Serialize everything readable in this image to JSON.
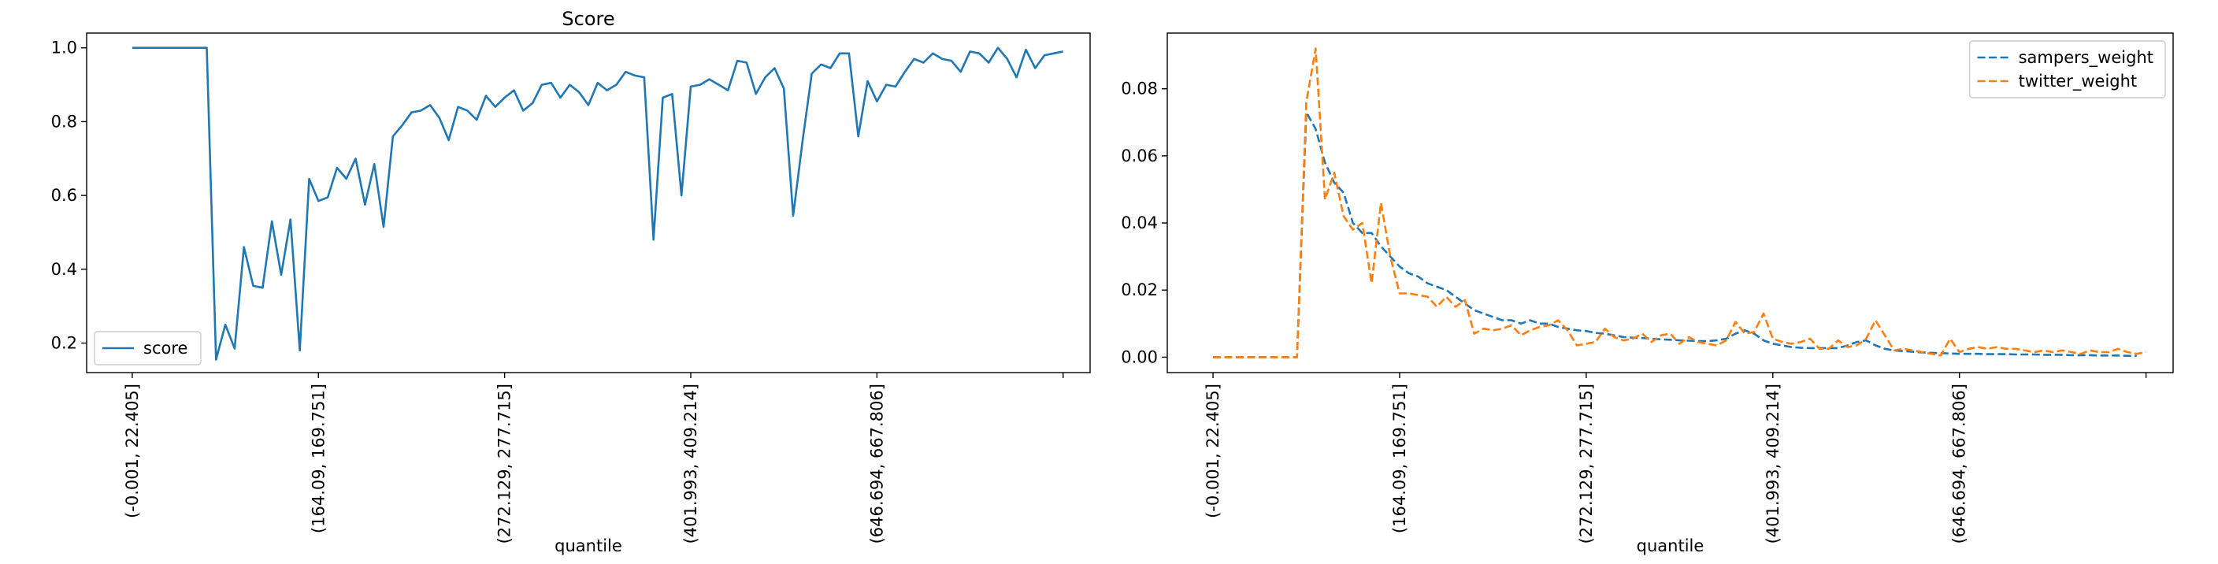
{
  "chart_data": [
    {
      "type": "line",
      "title": "Score",
      "xlabel": "quantile",
      "ylabel": "",
      "ylim": [
        0.12,
        1.04
      ],
      "xlim": [
        -4.9,
        102.9
      ],
      "grid": false,
      "legend_position": "lower-left",
      "x_tick_positions": [
        0,
        20,
        40,
        60,
        80,
        100
      ],
      "x_tick_labels": [
        "(-0.001, 22.405]",
        "(164.09, 169.751]",
        "(272.129, 277.715]",
        "(401.993, 409.214]",
        "(646.694, 667.806]",
        ""
      ],
      "y_ticks": [
        0.2,
        0.4,
        0.6,
        0.8,
        1.0
      ],
      "y_tick_labels": [
        "0.2",
        "0.4",
        "0.6",
        "0.8",
        "1.0"
      ],
      "series": [
        {
          "name": "score",
          "color": "#1f77b4",
          "dash": "solid",
          "values": [
            1.0,
            1.0,
            1.0,
            1.0,
            1.0,
            1.0,
            1.0,
            1.0,
            1.0,
            0.155,
            0.25,
            0.185,
            0.46,
            0.355,
            0.35,
            0.53,
            0.385,
            0.535,
            0.18,
            0.645,
            0.585,
            0.595,
            0.675,
            0.645,
            0.7,
            0.575,
            0.685,
            0.515,
            0.76,
            0.79,
            0.825,
            0.83,
            0.845,
            0.81,
            0.75,
            0.84,
            0.83,
            0.805,
            0.87,
            0.84,
            0.865,
            0.885,
            0.83,
            0.85,
            0.9,
            0.905,
            0.865,
            0.9,
            0.88,
            0.845,
            0.905,
            0.885,
            0.9,
            0.935,
            0.925,
            0.92,
            0.48,
            0.865,
            0.875,
            0.6,
            0.895,
            0.9,
            0.915,
            0.9,
            0.885,
            0.965,
            0.96,
            0.875,
            0.92,
            0.945,
            0.89,
            0.545,
            0.745,
            0.93,
            0.955,
            0.945,
            0.985,
            0.985,
            0.76,
            0.91,
            0.855,
            0.9,
            0.895,
            0.935,
            0.97,
            0.96,
            0.985,
            0.97,
            0.965,
            0.935,
            0.99,
            0.985,
            0.96,
            1.0,
            0.97,
            0.92,
            0.995,
            0.945,
            0.98,
            0.985,
            0.99
          ]
        }
      ]
    },
    {
      "type": "line",
      "title": "",
      "xlabel": "quantile",
      "ylabel": "",
      "ylim": [
        -0.0046,
        0.0966
      ],
      "xlim": [
        -4.9,
        102.9
      ],
      "grid": false,
      "legend_position": "upper-right",
      "x_tick_positions": [
        0,
        20,
        40,
        60,
        80,
        100
      ],
      "x_tick_labels": [
        "(-0.001, 22.405]",
        "(164.09, 169.751]",
        "(272.129, 277.715]",
        "(401.993, 409.214]",
        "(646.694, 667.806]",
        ""
      ],
      "y_ticks": [
        0.0,
        0.02,
        0.04,
        0.06,
        0.08
      ],
      "y_tick_labels": [
        "0.00",
        "0.02",
        "0.04",
        "0.06",
        "0.08"
      ],
      "series": [
        {
          "name": "sampers_weight",
          "color": "#1f77b4",
          "dash": "dashed",
          "values": [
            0,
            0,
            0,
            0,
            0,
            0,
            0,
            0,
            0,
            0,
            0.073,
            0.068,
            0.058,
            0.052,
            0.049,
            0.04,
            0.037,
            0.037,
            0.033,
            0.03,
            0.027,
            0.025,
            0.024,
            0.022,
            0.021,
            0.02,
            0.018,
            0.016,
            0.014,
            0.013,
            0.012,
            0.011,
            0.011,
            0.01,
            0.011,
            0.01,
            0.01,
            0.009,
            0.0085,
            0.008,
            0.0078,
            0.0072,
            0.007,
            0.0065,
            0.006,
            0.0058,
            0.0057,
            0.0055,
            0.0053,
            0.0052,
            0.005,
            0.0049,
            0.0048,
            0.0048,
            0.005,
            0.0055,
            0.007,
            0.008,
            0.007,
            0.005,
            0.004,
            0.0035,
            0.003,
            0.0028,
            0.0027,
            0.0027,
            0.0027,
            0.0027,
            0.0035,
            0.0045,
            0.005,
            0.0035,
            0.0025,
            0.002,
            0.0018,
            0.0016,
            0.0014,
            0.0013,
            0.0012,
            0.0011,
            0.001,
            0.001,
            0.001,
            0.0009,
            0.0009,
            0.0009,
            0.0008,
            0.0008,
            0.0008,
            0.0007,
            0.0007,
            0.0007,
            0.0006,
            0.0006,
            0.0006,
            0.0005,
            0.0005,
            0.0005,
            0.0004,
            0.0004
          ]
        },
        {
          "name": "twitter_weight",
          "color": "#ff7f0e",
          "dash": "dashed",
          "values": [
            0,
            0,
            0,
            0,
            0,
            0,
            0,
            0,
            0,
            0,
            0.076,
            0.092,
            0.047,
            0.055,
            0.042,
            0.038,
            0.04,
            0.022,
            0.046,
            0.03,
            0.019,
            0.019,
            0.0185,
            0.018,
            0.015,
            0.018,
            0.015,
            0.017,
            0.007,
            0.0085,
            0.008,
            0.0085,
            0.0095,
            0.0065,
            0.008,
            0.009,
            0.0095,
            0.011,
            0.008,
            0.0035,
            0.004,
            0.0045,
            0.0085,
            0.006,
            0.005,
            0.0055,
            0.007,
            0.0045,
            0.0065,
            0.007,
            0.004,
            0.006,
            0.0045,
            0.004,
            0.0035,
            0.005,
            0.0105,
            0.007,
            0.0075,
            0.013,
            0.0055,
            0.0045,
            0.004,
            0.0045,
            0.0055,
            0.0025,
            0.0025,
            0.005,
            0.003,
            0.0035,
            0.0055,
            0.011,
            0.0065,
            0.002,
            0.0025,
            0.002,
            0.0015,
            0.001,
            0.0005,
            0.0055,
            0.0015,
            0.0025,
            0.003,
            0.0025,
            0.003,
            0.0025,
            0.0025,
            0.002,
            0.0015,
            0.002,
            0.0015,
            0.002,
            0.0015,
            0.001,
            0.002,
            0.0015,
            0.0015,
            0.0025,
            0.0015,
            0.001,
            0.0015
          ]
        }
      ]
    }
  ]
}
